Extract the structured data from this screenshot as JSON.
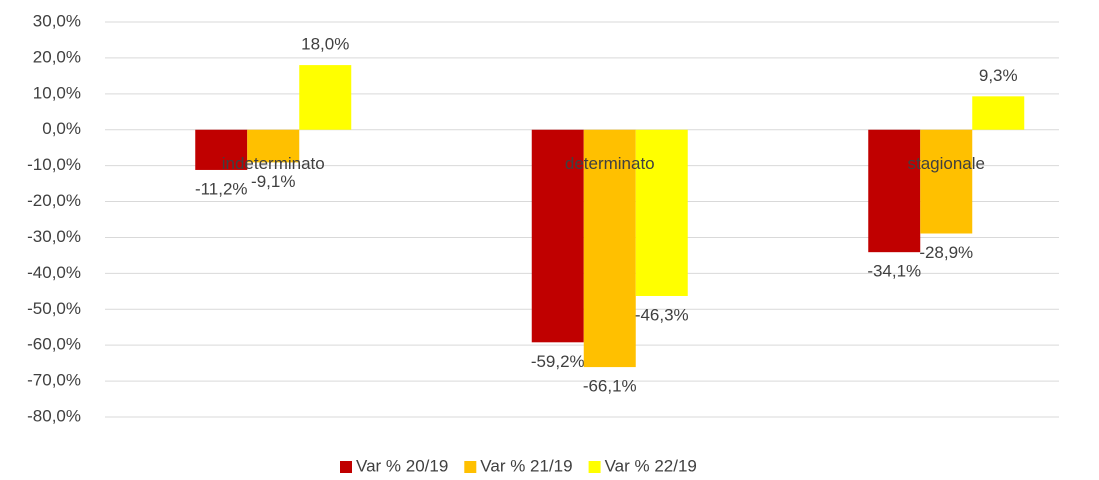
{
  "chart_data": {
    "type": "bar",
    "categories": [
      "indeterminato",
      "determinato",
      "stagionale"
    ],
    "series": [
      {
        "name": "Var % 20/19",
        "color": "#c00000",
        "values": [
          -11.2,
          -59.2,
          -34.1
        ],
        "value_labels": [
          "-11,2%",
          "-59,2%",
          "-34,1%"
        ]
      },
      {
        "name": "Var % 21/19",
        "color": "#ffc000",
        "values": [
          -9.1,
          -66.1,
          -28.9
        ],
        "value_labels": [
          "-9,1%",
          "-66,1%",
          "-28,9%"
        ]
      },
      {
        "name": "Var % 22/19",
        "color": "#ffff00",
        "values": [
          18.0,
          -46.3,
          9.3
        ],
        "value_labels": [
          "18,0%",
          "-46,3%",
          "9,3%"
        ]
      }
    ],
    "ylim": [
      -80,
      30
    ],
    "yticks": [
      {
        "value": 30,
        "label": "30,0%"
      },
      {
        "value": 20,
        "label": "20,0%"
      },
      {
        "value": 10,
        "label": "10,0%"
      },
      {
        "value": 0,
        "label": "0,0%"
      },
      {
        "value": -10,
        "label": "-10,0%"
      },
      {
        "value": -20,
        "label": "-20,0%"
      },
      {
        "value": -30,
        "label": "-30,0%"
      },
      {
        "value": -40,
        "label": "-40,0%"
      },
      {
        "value": -50,
        "label": "-50,0%"
      },
      {
        "value": -60,
        "label": "-60,0%"
      },
      {
        "value": -70,
        "label": "-70,0%"
      },
      {
        "value": -80,
        "label": "-80,0%"
      }
    ],
    "grid": true,
    "legend": "bottom"
  }
}
